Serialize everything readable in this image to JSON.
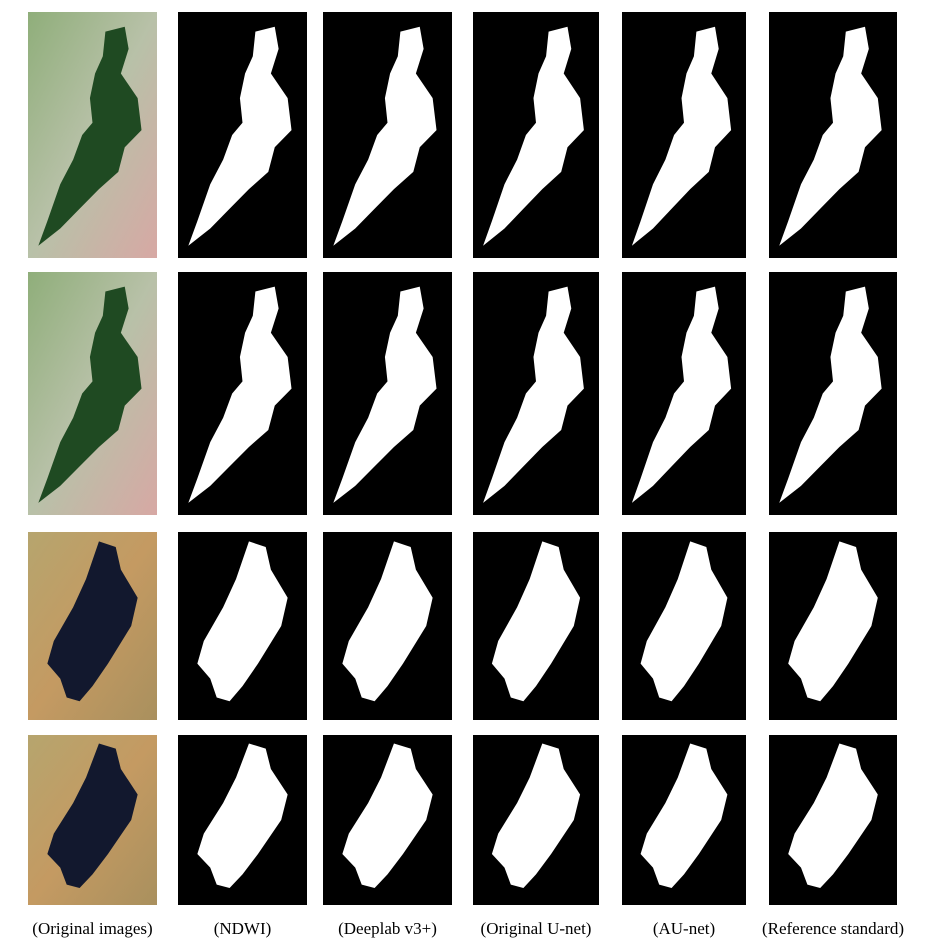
{
  "captions": [
    "(Original images)",
    "(NDWI)",
    "(Deeplab v3+)",
    "(Original U-net)",
    "(AU-net)",
    "(Reference standard)"
  ]
}
